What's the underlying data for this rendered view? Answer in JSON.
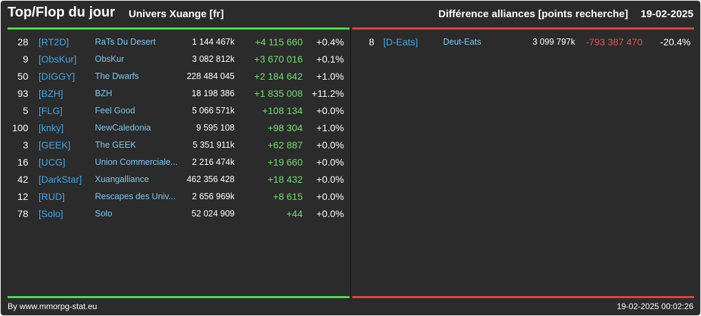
{
  "header": {
    "title": "Top/Flop du jour",
    "univers": "Univers Xuange [fr]",
    "subtitle": "Différence alliances [points recherche]",
    "date": "19-02-2025"
  },
  "colors": {
    "background": "#2b2b2b",
    "top_accent": "#4ae04a",
    "flop_accent": "#e0453f",
    "tag": "#3fa6e6",
    "name": "#7cc7f0",
    "positive": "#6fe06f",
    "negative": "#e0574f"
  },
  "top": [
    {
      "rank": "28",
      "tag": "[RT2D]",
      "name": "RaTs Du Desert",
      "points": "1 144 467k",
      "diff": "+4 115 660",
      "pct": "+0.4%"
    },
    {
      "rank": "9",
      "tag": "[ObsKur]",
      "name": "ObsKur",
      "points": "3 082 812k",
      "diff": "+3 670 016",
      "pct": "+0.1%"
    },
    {
      "rank": "50",
      "tag": "[DIGGY]",
      "name": "The Dwarfs",
      "points": "228 484 045",
      "diff": "+2 184 642",
      "pct": "+1.0%"
    },
    {
      "rank": "93",
      "tag": "[BZH]",
      "name": "BZH",
      "points": "18 198 386",
      "diff": "+1 835 008",
      "pct": "+11.2%"
    },
    {
      "rank": "5",
      "tag": "[FLG]",
      "name": "Feel Good",
      "points": "5 066 571k",
      "diff": "+108 134",
      "pct": "+0.0%"
    },
    {
      "rank": "100",
      "tag": "[knky]",
      "name": "NewCaledonia",
      "points": "9 595 108",
      "diff": "+98 304",
      "pct": "+1.0%"
    },
    {
      "rank": "3",
      "tag": "[GEEK]",
      "name": "The GEEK",
      "points": "5 351 911k",
      "diff": "+62 887",
      "pct": "+0.0%"
    },
    {
      "rank": "16",
      "tag": "[UCG]",
      "name": "Union Commerciale...",
      "points": "2 216 474k",
      "diff": "+19 660",
      "pct": "+0.0%"
    },
    {
      "rank": "42",
      "tag": "[DarkStar]",
      "name": "Xuangalliance",
      "points": "462 356 428",
      "diff": "+18 432",
      "pct": "+0.0%"
    },
    {
      "rank": "12",
      "tag": "[RUD]",
      "name": "Rescapes des Univ...",
      "points": "2 656 969k",
      "diff": "+8 615",
      "pct": "+0.0%"
    },
    {
      "rank": "78",
      "tag": "[Solo]",
      "name": "Solo",
      "points": "52 024 909",
      "diff": "+44",
      "pct": "+0.0%"
    }
  ],
  "flop": [
    {
      "rank": "8",
      "tag": "[D-Eats]",
      "name": "Deut-Eats",
      "points": "3 099 797k",
      "diff": "-793 387 470",
      "pct": "-20.4%"
    }
  ],
  "footer": {
    "source": "By www.mmorpg-stat.eu",
    "timestamp": "19-02-2025 00:02:26"
  }
}
